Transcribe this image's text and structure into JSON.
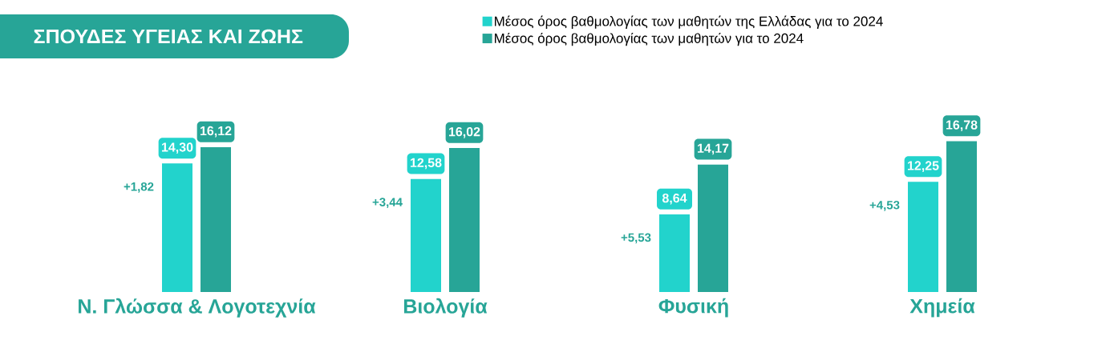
{
  "chart_data": {
    "type": "bar",
    "title": "ΣΠΟΥΔΕΣ ΥΓΕΙΑΣ ΚΑΙ ΖΩΗΣ",
    "categories": [
      "Ν. Γλώσσα & Λογοτεχνία",
      "Βιολογία",
      "Φυσική",
      "Χημεία"
    ],
    "series": [
      {
        "name": "Μέσος όρος βαθμολογίας των μαθητών της Ελλάδας για το 2024",
        "color": "#22d3cc",
        "values": [
          14.3,
          12.58,
          8.64,
          12.25
        ],
        "value_labels": [
          "14,30",
          "12,58",
          "8,64",
          "12,25"
        ]
      },
      {
        "name": "Μέσος όρος βαθμολογίας των μαθητών για το 2024",
        "color": "#27a597",
        "values": [
          16.12,
          16.02,
          14.17,
          16.78
        ],
        "value_labels": [
          "16,12",
          "16,02",
          "14,17",
          "16,78"
        ]
      }
    ],
    "annotations": [
      "+1,82",
      "+3,44",
      "+5,53",
      "+4,53"
    ],
    "legend": "top right"
  }
}
